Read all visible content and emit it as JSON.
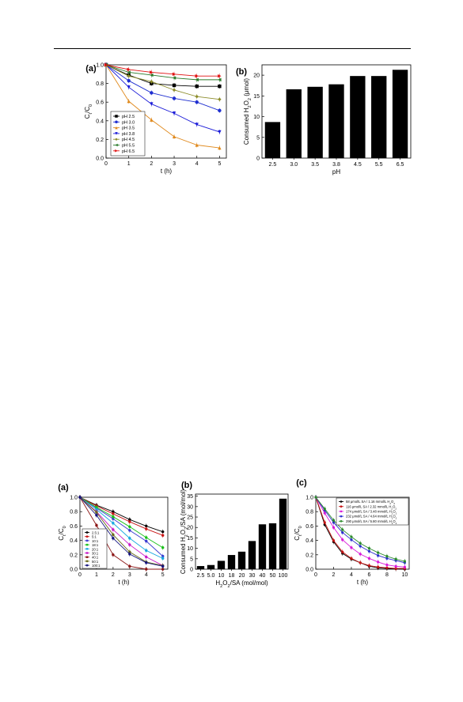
{
  "page": {
    "header_rule": true
  },
  "figure_top": {
    "a": {
      "label": "(a)",
      "chart_data": {
        "type": "line",
        "xlabel": "t (h)",
        "ylabel_main": "C",
        "ylabel_sub1": "t",
        "ylabel_sep": "/C",
        "ylabel_sub2": "0",
        "xlim": [
          0,
          5.3
        ],
        "ylim": [
          0,
          1.0
        ],
        "xticks": [
          "0",
          "1",
          "2",
          "3",
          "4",
          "5"
        ],
        "yticks": [
          "0.0",
          "0.2",
          "0.4",
          "0.6",
          "0.8",
          "1.0"
        ],
        "legend_position": "bottom-left",
        "x": [
          0,
          1,
          2,
          3,
          4,
          5
        ],
        "series": [
          {
            "name": "pH 2.5",
            "color": "#000000",
            "marker": "square",
            "values": [
              1.0,
              0.89,
              0.8,
              0.78,
              0.77,
              0.77
            ]
          },
          {
            "name": "pH 3.0",
            "color": "#1f2fd0",
            "marker": "circle",
            "values": [
              1.0,
              0.83,
              0.7,
              0.64,
              0.6,
              0.51
            ]
          },
          {
            "name": "pH 3.5",
            "color": "#e08a1e",
            "marker": "triangle-up",
            "values": [
              1.0,
              0.61,
              0.41,
              0.23,
              0.14,
              0.11
            ]
          },
          {
            "name": "pH 3.8",
            "color": "#1b1bd8",
            "marker": "triangle-down",
            "values": [
              1.0,
              0.76,
              0.58,
              0.48,
              0.36,
              0.28
            ]
          },
          {
            "name": "pH 4.5",
            "color": "#8c8c2a",
            "marker": "diamond",
            "values": [
              1.0,
              0.88,
              0.82,
              0.73,
              0.66,
              0.63
            ]
          },
          {
            "name": "pH 5.5",
            "color": "#2a7a2a",
            "marker": "triangle-left",
            "values": [
              1.0,
              0.92,
              0.89,
              0.86,
              0.84,
              0.84
            ]
          },
          {
            "name": "pH 6.5",
            "color": "#e01010",
            "marker": "triangle-right",
            "values": [
              1.0,
              0.95,
              0.92,
              0.9,
              0.88,
              0.88
            ]
          }
        ]
      }
    },
    "b": {
      "label": "(b)",
      "chart_data": {
        "type": "bar",
        "xlabel": "pH",
        "ylabel_a": "Consumed H",
        "ylabel_sub1": "2",
        "ylabel_b": "O",
        "ylabel_sub2": "2",
        "ylabel_c": " (μmol)",
        "ylim": [
          0,
          22.5
        ],
        "yticks": [
          "0",
          "5",
          "10",
          "15",
          "20"
        ],
        "categories": [
          "2.5",
          "3.0",
          "3.5",
          "3.8",
          "4.5",
          "5.5",
          "6.5"
        ],
        "values": [
          8.7,
          16.6,
          17.2,
          17.8,
          19.8,
          19.8,
          21.3
        ]
      }
    }
  },
  "figure_bottom": {
    "a": {
      "label": "(a)",
      "chart_data": {
        "type": "line",
        "xlabel": "t (h)",
        "ylabel_main": "C",
        "ylabel_sub1": "t",
        "ylabel_sep": "/C",
        "ylabel_sub2": "0",
        "xlim": [
          0,
          5.3
        ],
        "ylim": [
          0,
          1.0
        ],
        "xticks": [
          "0",
          "1",
          "2",
          "3",
          "4",
          "5"
        ],
        "yticks": [
          "0.0",
          "0.2",
          "0.4",
          "0.6",
          "0.8",
          "1.0"
        ],
        "legend_position": "bottom-left",
        "x": [
          0,
          1,
          2,
          3,
          4,
          5
        ],
        "series": [
          {
            "name": "2.5:1",
            "color": "#000000",
            "values": [
              1.0,
              0.89,
              0.8,
              0.69,
              0.6,
              0.52
            ]
          },
          {
            "name": "5:1",
            "color": "#c81414",
            "values": [
              1.0,
              0.88,
              0.77,
              0.66,
              0.56,
              0.47
            ]
          },
          {
            "name": "10:1",
            "color": "#3a3ad0",
            "values": [
              1.0,
              0.85,
              0.7,
              0.54,
              0.39,
              0.18
            ]
          },
          {
            "name": "18:1",
            "color": "#18c018",
            "values": [
              1.0,
              0.86,
              0.73,
              0.59,
              0.44,
              0.3
            ]
          },
          {
            "name": "20:1",
            "color": "#18a8e0",
            "values": [
              1.0,
              0.83,
              0.64,
              0.43,
              0.26,
              0.15
            ]
          },
          {
            "name": "30:1",
            "color": "#c818c8",
            "values": [
              1.0,
              0.8,
              0.55,
              0.34,
              0.17,
              0.05
            ]
          },
          {
            "name": "40:1",
            "color": "#8a1414",
            "values": [
              1.0,
              0.61,
              0.2,
              0.04,
              0.0,
              0.0
            ]
          },
          {
            "name": "50:1",
            "color": "#6a6a1a",
            "values": [
              1.0,
              0.79,
              0.48,
              0.24,
              0.1,
              0.05
            ]
          },
          {
            "name": "100:1",
            "color": "#141480",
            "values": [
              1.0,
              0.75,
              0.43,
              0.21,
              0.09,
              0.04
            ]
          }
        ]
      }
    },
    "b": {
      "label": "(b)",
      "chart_data": {
        "type": "bar",
        "xlabel_a": "H",
        "xlabel_sub1": "2",
        "xlabel_b": "O",
        "xlabel_sub2": "2",
        "xlabel_c": "/SA (mol/mol)",
        "ylabel_a": "Consumed H",
        "ylabel_sub1": "2",
        "ylabel_b": "O",
        "ylabel_sub2": "2",
        "ylabel_c": "/SA (mol/mol)",
        "ylim": [
          0,
          36
        ],
        "yticks": [
          "0",
          "5",
          "10",
          "15",
          "20",
          "25",
          "30",
          "35"
        ],
        "categories": [
          "2.5",
          "5.0",
          "10",
          "18",
          "20",
          "30",
          "40",
          "50",
          "100"
        ],
        "values": [
          1.5,
          2.0,
          4.0,
          6.8,
          8.4,
          13.5,
          21.5,
          22.0,
          33.8
        ]
      }
    },
    "c": {
      "label": "(c)",
      "chart_data": {
        "type": "line",
        "xlabel": "t (h)",
        "ylabel_main": "C",
        "ylabel_sub1": "t",
        "ylabel_sep": "/C",
        "ylabel_sub2": "0",
        "xlim": [
          0,
          10.5
        ],
        "ylim": [
          0,
          1.0
        ],
        "xticks": [
          "0",
          "2",
          "4",
          "6",
          "8",
          "10"
        ],
        "yticks": [
          "0.0",
          "0.2",
          "0.4",
          "0.6",
          "0.8",
          "1.0"
        ],
        "legend_position": "top-right",
        "x": [
          0,
          1,
          2,
          3,
          4,
          5,
          6,
          7,
          8,
          9,
          10
        ],
        "series": [
          {
            "name": "58 μmol/L SA / 1.16 mmol/L H",
            "suffix": "2O2",
            "color": "#000000",
            "values": [
              1.0,
              0.62,
              0.38,
              0.22,
              0.14,
              0.09,
              0.04,
              0.02,
              0.01,
              0.005,
              0.0
            ]
          },
          {
            "name": "116 μmol/L SA / 2.32 mmol/L H",
            "suffix": "2O2",
            "color": "#c81414",
            "values": [
              1.0,
              0.65,
              0.4,
              0.24,
              0.15,
              0.09,
              0.05,
              0.03,
              0.02,
              0.01,
              0.01
            ]
          },
          {
            "name": "174 μmol/L SA / 3.48 mmol/L H",
            "suffix": "2O2",
            "color": "#d818d8",
            "values": [
              1.0,
              0.78,
              0.58,
              0.41,
              0.3,
              0.21,
              0.15,
              0.1,
              0.06,
              0.04,
              0.03
            ]
          },
          {
            "name": "232 μmol/L SA / 4.64 mmol/L H",
            "suffix": "2O2",
            "color": "#2a2ad0",
            "values": [
              1.0,
              0.82,
              0.65,
              0.51,
              0.41,
              0.32,
              0.25,
              0.19,
              0.15,
              0.12,
              0.09
            ]
          },
          {
            "name": "290 μmol/L SA / 5.80 mmol/L H",
            "suffix": "2O2",
            "color": "#2a8a2a",
            "values": [
              1.0,
              0.84,
              0.68,
              0.55,
              0.45,
              0.36,
              0.29,
              0.23,
              0.18,
              0.14,
              0.11
            ]
          }
        ]
      }
    }
  }
}
